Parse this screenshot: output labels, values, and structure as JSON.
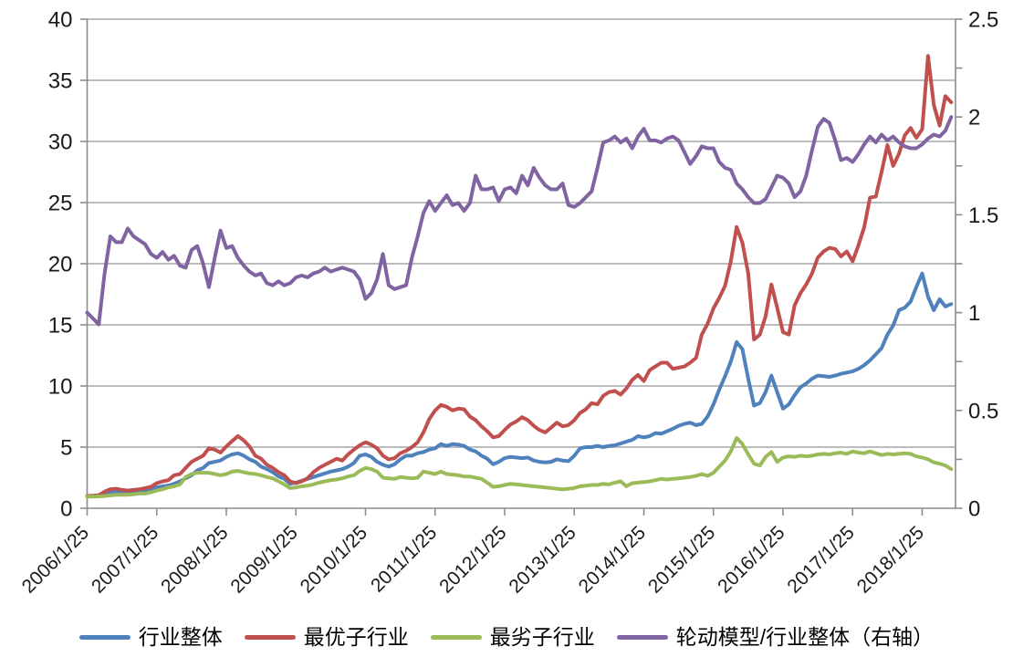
{
  "chart_data": {
    "type": "line",
    "title": "",
    "xlabel": "",
    "ylabel_left": "",
    "ylabel_right": "",
    "grid": "horizontal",
    "legend_position": "bottom",
    "background_color": "#FFFFFF",
    "gridline_color": "#A6A6A6",
    "axis_color": "#8C8C8C",
    "tick_label_color": "#1A1A1A",
    "left_axis": {
      "range": [
        0,
        40
      ],
      "tick_step": 5,
      "tick_labels": [
        "0",
        "5",
        "10",
        "15",
        "20",
        "25",
        "30",
        "35",
        "40"
      ]
    },
    "right_axis": {
      "range": [
        0,
        2.5
      ],
      "tick_step": 0.5,
      "minor_tick_step": 0.25,
      "tick_labels": [
        "0",
        "0.5",
        "1",
        "1.5",
        "2",
        "2.5"
      ]
    },
    "x_tick_labels": [
      "2006/1/25",
      "2007/1/25",
      "2008/1/25",
      "2009/1/25",
      "2010/1/25",
      "2011/1/25",
      "2012/1/25",
      "2013/1/25",
      "2014/1/25",
      "2015/1/25",
      "2016/1/25",
      "2017/1/25",
      "2018/1/25"
    ],
    "x_points_per_tick": 12,
    "x_start": "2006/1/25",
    "x_frequency": "monthly",
    "series": [
      {
        "name": "行业整体",
        "axis": "left",
        "color": "#4F81BD",
        "values": [
          1.0,
          1.0,
          1.05,
          1.2,
          1.3,
          1.3,
          1.25,
          1.3,
          1.35,
          1.4,
          1.45,
          1.55,
          1.7,
          1.8,
          1.85,
          2.0,
          2.2,
          2.45,
          2.7,
          3.1,
          3.3,
          3.7,
          3.8,
          3.9,
          4.2,
          4.4,
          4.5,
          4.3,
          4.0,
          3.8,
          3.4,
          3.2,
          2.95,
          2.6,
          2.4,
          2.0,
          2.1,
          2.25,
          2.4,
          2.55,
          2.7,
          2.85,
          3.0,
          3.1,
          3.2,
          3.4,
          3.7,
          4.3,
          4.4,
          4.2,
          3.8,
          3.55,
          3.4,
          3.6,
          4.0,
          4.3,
          4.3,
          4.5,
          4.6,
          4.8,
          4.9,
          5.25,
          5.1,
          5.25,
          5.2,
          5.1,
          4.8,
          4.65,
          4.3,
          4.05,
          3.6,
          3.8,
          4.1,
          4.2,
          4.15,
          4.1,
          4.15,
          3.9,
          3.8,
          3.75,
          3.8,
          4.0,
          3.9,
          3.85,
          4.3,
          4.9,
          5.0,
          5.0,
          5.1,
          5.0,
          5.1,
          5.15,
          5.3,
          5.45,
          5.6,
          5.9,
          5.8,
          5.9,
          6.15,
          6.1,
          6.3,
          6.5,
          6.75,
          6.9,
          7.0,
          6.8,
          6.9,
          7.5,
          8.5,
          9.7,
          10.8,
          12.0,
          13.6,
          13.0,
          10.6,
          8.4,
          8.6,
          9.5,
          10.85,
          9.5,
          8.15,
          8.5,
          9.25,
          9.9,
          10.2,
          10.6,
          10.85,
          10.8,
          10.75,
          10.85,
          11.0,
          11.1,
          11.2,
          11.4,
          11.7,
          12.1,
          12.6,
          13.1,
          14.2,
          14.95,
          16.2,
          16.4,
          16.9,
          18.1,
          19.2,
          17.3,
          16.2,
          17.1,
          16.5,
          16.7
        ]
      },
      {
        "name": "最优子行业",
        "axis": "left",
        "color": "#C0504D",
        "values": [
          1.0,
          1.02,
          1.07,
          1.36,
          1.56,
          1.6,
          1.5,
          1.45,
          1.5,
          1.55,
          1.65,
          1.75,
          2.05,
          2.2,
          2.3,
          2.7,
          2.8,
          3.3,
          3.8,
          4.05,
          4.3,
          4.9,
          4.8,
          4.55,
          5.05,
          5.5,
          5.9,
          5.55,
          5.05,
          4.3,
          4.05,
          3.55,
          3.3,
          2.95,
          2.7,
          2.2,
          2.05,
          2.2,
          2.45,
          2.95,
          3.3,
          3.55,
          3.8,
          4.05,
          3.9,
          4.4,
          4.8,
          5.15,
          5.4,
          5.2,
          4.9,
          4.3,
          4.0,
          4.1,
          4.5,
          4.7,
          5.0,
          5.4,
          6.2,
          7.3,
          8.0,
          8.45,
          8.3,
          8.0,
          8.15,
          8.1,
          7.5,
          7.2,
          6.7,
          6.3,
          5.8,
          5.9,
          6.4,
          6.85,
          7.1,
          7.45,
          7.2,
          6.75,
          6.4,
          6.2,
          6.6,
          7.0,
          6.7,
          6.8,
          7.2,
          7.8,
          8.1,
          8.6,
          8.5,
          9.2,
          9.5,
          9.6,
          9.3,
          9.8,
          10.5,
          10.9,
          10.4,
          11.3,
          11.6,
          11.9,
          11.9,
          11.4,
          11.5,
          11.6,
          11.9,
          12.3,
          14.2,
          15.1,
          16.35,
          17.2,
          18.2,
          20.2,
          23.0,
          21.7,
          19.2,
          13.8,
          14.2,
          15.7,
          18.3,
          16.4,
          14.4,
          14.2,
          16.6,
          17.6,
          18.3,
          19.2,
          20.5,
          21.0,
          21.3,
          21.2,
          20.6,
          21.0,
          20.2,
          21.5,
          23.0,
          25.4,
          25.5,
          27.5,
          29.7,
          28.0,
          29.0,
          30.5,
          31.1,
          30.3,
          31.0,
          37.0,
          33.0,
          31.3,
          33.7,
          33.2
        ]
      },
      {
        "name": "最劣子行业",
        "axis": "left",
        "color": "#9BBB59",
        "values": [
          0.95,
          0.95,
          0.97,
          1.0,
          1.05,
          1.1,
          1.1,
          1.1,
          1.15,
          1.2,
          1.2,
          1.3,
          1.45,
          1.55,
          1.7,
          1.8,
          1.95,
          2.55,
          2.8,
          2.9,
          2.9,
          2.9,
          2.8,
          2.7,
          2.8,
          3.0,
          3.05,
          2.95,
          2.85,
          2.8,
          2.7,
          2.55,
          2.45,
          2.2,
          1.95,
          1.65,
          1.7,
          1.8,
          1.85,
          1.95,
          2.1,
          2.2,
          2.3,
          2.35,
          2.45,
          2.6,
          2.7,
          3.05,
          3.3,
          3.2,
          3.0,
          2.5,
          2.45,
          2.4,
          2.55,
          2.5,
          2.45,
          2.5,
          3.0,
          2.9,
          2.8,
          3.0,
          2.8,
          2.75,
          2.7,
          2.6,
          2.6,
          2.5,
          2.4,
          2.1,
          1.75,
          1.8,
          1.9,
          2.0,
          1.95,
          1.9,
          1.85,
          1.8,
          1.75,
          1.7,
          1.65,
          1.6,
          1.55,
          1.6,
          1.65,
          1.8,
          1.85,
          1.9,
          1.9,
          2.0,
          1.95,
          2.1,
          2.2,
          1.8,
          2.05,
          2.1,
          2.15,
          2.2,
          2.3,
          2.4,
          2.35,
          2.4,
          2.45,
          2.5,
          2.55,
          2.65,
          2.8,
          2.65,
          2.9,
          3.4,
          3.9,
          4.65,
          5.75,
          5.25,
          4.4,
          3.65,
          3.5,
          4.2,
          4.6,
          3.8,
          4.15,
          4.25,
          4.2,
          4.3,
          4.25,
          4.3,
          4.4,
          4.45,
          4.4,
          4.5,
          4.55,
          4.45,
          4.65,
          4.55,
          4.5,
          4.65,
          4.5,
          4.35,
          4.45,
          4.4,
          4.45,
          4.5,
          4.45,
          4.25,
          4.15,
          4.0,
          3.75,
          3.65,
          3.5,
          3.2
        ]
      },
      {
        "name": "轮动模型/行业整体（右轴）",
        "axis": "right",
        "color": "#8064A2",
        "values": [
          1.0,
          0.97,
          0.94,
          1.2,
          1.39,
          1.36,
          1.36,
          1.43,
          1.39,
          1.37,
          1.35,
          1.3,
          1.28,
          1.31,
          1.27,
          1.29,
          1.24,
          1.23,
          1.32,
          1.34,
          1.25,
          1.13,
          1.28,
          1.42,
          1.33,
          1.34,
          1.28,
          1.24,
          1.21,
          1.19,
          1.2,
          1.15,
          1.14,
          1.16,
          1.14,
          1.15,
          1.18,
          1.19,
          1.18,
          1.2,
          1.21,
          1.23,
          1.21,
          1.22,
          1.23,
          1.22,
          1.21,
          1.17,
          1.07,
          1.1,
          1.17,
          1.3,
          1.14,
          1.12,
          1.13,
          1.14,
          1.28,
          1.39,
          1.51,
          1.57,
          1.52,
          1.56,
          1.6,
          1.55,
          1.56,
          1.52,
          1.56,
          1.7,
          1.63,
          1.63,
          1.64,
          1.57,
          1.63,
          1.64,
          1.61,
          1.7,
          1.65,
          1.74,
          1.69,
          1.65,
          1.63,
          1.63,
          1.66,
          1.55,
          1.54,
          1.56,
          1.59,
          1.62,
          1.74,
          1.87,
          1.88,
          1.9,
          1.87,
          1.89,
          1.84,
          1.9,
          1.94,
          1.88,
          1.88,
          1.87,
          1.89,
          1.9,
          1.88,
          1.82,
          1.76,
          1.8,
          1.85,
          1.84,
          1.84,
          1.77,
          1.74,
          1.73,
          1.66,
          1.63,
          1.59,
          1.56,
          1.56,
          1.58,
          1.64,
          1.7,
          1.69,
          1.66,
          1.59,
          1.62,
          1.7,
          1.83,
          1.95,
          1.99,
          1.97,
          1.88,
          1.78,
          1.79,
          1.77,
          1.81,
          1.86,
          1.9,
          1.87,
          1.91,
          1.88,
          1.9,
          1.87,
          1.85,
          1.84,
          1.84,
          1.86,
          1.89,
          1.91,
          1.9,
          1.93,
          2.0
        ]
      }
    ]
  }
}
